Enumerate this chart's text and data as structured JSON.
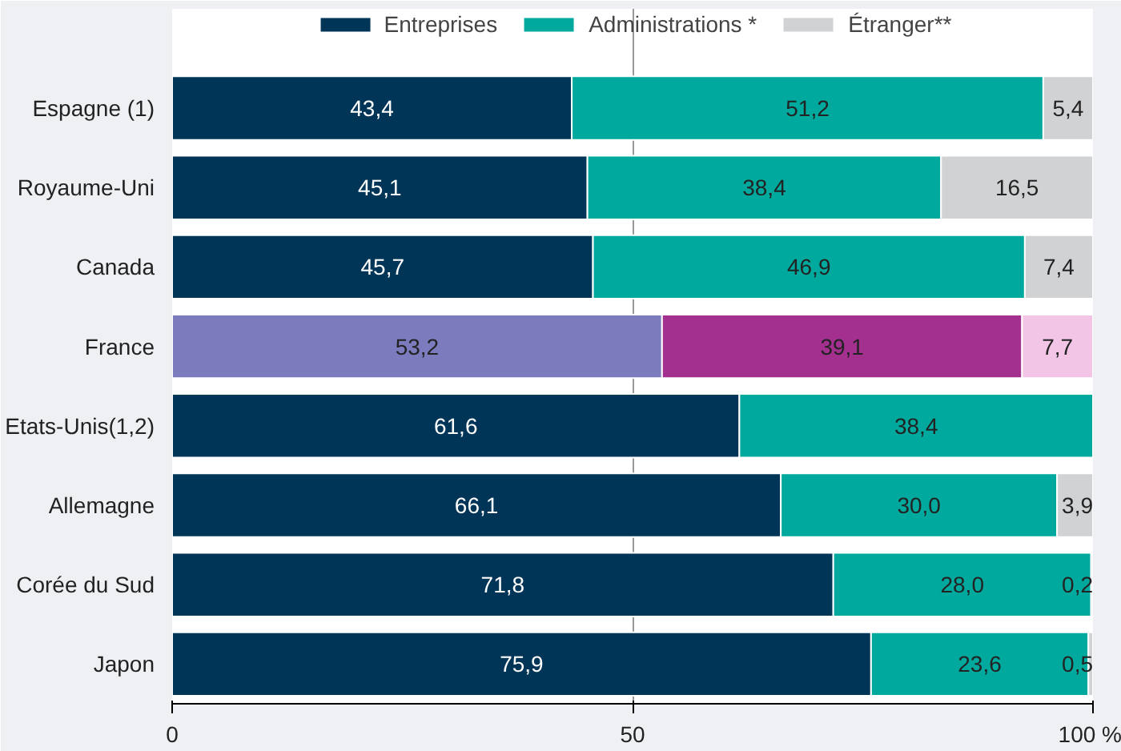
{
  "chart_data": {
    "type": "bar",
    "orientation": "horizontal",
    "stacked": true,
    "categories": [
      "Espagne (1)",
      "Royaume-Uni",
      "Canada",
      "France",
      "Etats-Unis(1,2)",
      "Allemagne",
      "Corée du Sud",
      "Japon"
    ],
    "series": [
      {
        "name": "Entreprises",
        "color": "#003557",
        "colors": [
          null,
          null,
          null,
          "#7b7bbd",
          null,
          null,
          null,
          null
        ],
        "values": [
          43.4,
          45.1,
          45.7,
          53.2,
          61.6,
          66.1,
          71.8,
          75.9
        ],
        "value_labels": [
          "43,4",
          "45,1",
          "45,7",
          "53,2",
          "61,6",
          "66,1",
          "71,8",
          "75,9"
        ]
      },
      {
        "name": "Administrations *",
        "color": "#00a99d",
        "colors": [
          null,
          null,
          null,
          "#a3308f",
          null,
          null,
          null,
          null
        ],
        "values": [
          51.2,
          38.4,
          46.9,
          39.1,
          38.4,
          30.0,
          28.0,
          23.6
        ],
        "value_labels": [
          "51,2",
          "38,4",
          "46,9",
          "39,1",
          "38,4",
          "30,0",
          "28,0",
          "23,6"
        ]
      },
      {
        "name": "Étranger**",
        "color": "#d1d2d4",
        "colors": [
          null,
          null,
          null,
          "#f2c4e6",
          null,
          null,
          null,
          null
        ],
        "values": [
          5.4,
          16.5,
          7.4,
          7.7,
          null,
          3.9,
          0.2,
          0.5
        ],
        "value_labels": [
          "5,4",
          "16,5",
          "7,4",
          "7,7",
          null,
          "3,9",
          "0,2",
          "0,5"
        ]
      }
    ],
    "xlim": [
      0,
      100
    ],
    "xticks": [
      0,
      50,
      {
        "value": 100,
        "label": "100 %"
      }
    ],
    "grid": "x",
    "legend": "top"
  }
}
